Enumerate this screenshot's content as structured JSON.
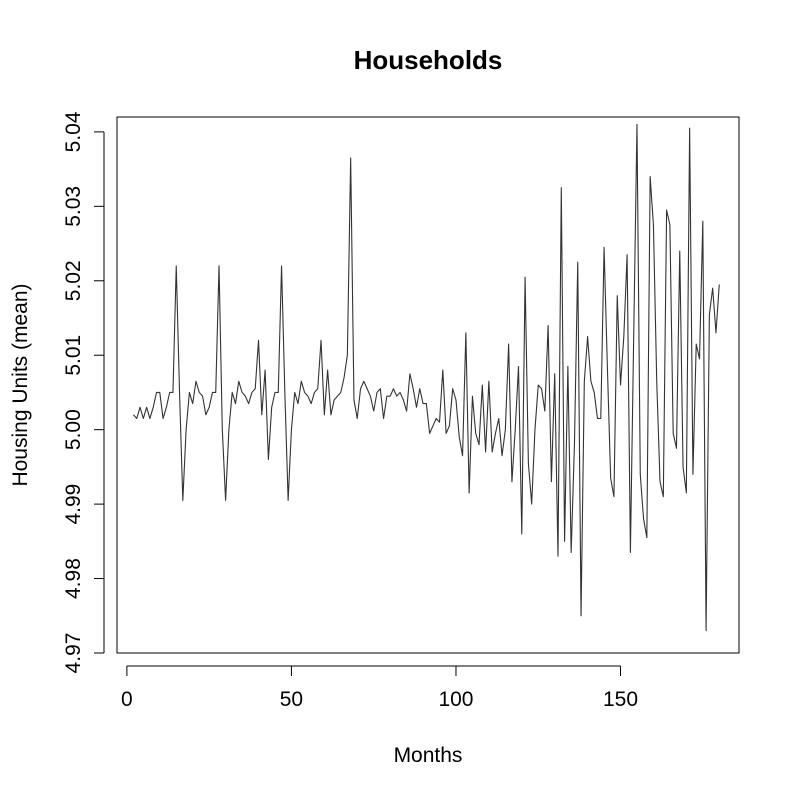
{
  "chart_data": {
    "type": "line",
    "title": "Households",
    "xlabel": "Months",
    "ylabel": "Housing Units (mean)",
    "xlim": [
      -3,
      186
    ],
    "ylim": [
      4.97,
      5.042
    ],
    "x_ticks": [
      0,
      50,
      100,
      150
    ],
    "x_tick_labels": [
      "0",
      "50",
      "100",
      "150"
    ],
    "y_ticks": [
      4.97,
      4.98,
      4.99,
      5.0,
      5.01,
      5.02,
      5.03,
      5.04
    ],
    "y_tick_labels": [
      "4.97",
      "4.98",
      "4.99",
      "5.00",
      "5.01",
      "5.02",
      "5.03",
      "5.04"
    ],
    "grid": false,
    "line_color": "#333333",
    "series": [
      {
        "x": [
          2,
          3,
          4,
          5,
          6,
          7,
          8,
          9,
          10,
          11,
          12,
          13,
          14,
          15,
          16,
          17,
          18,
          19,
          20,
          21,
          22,
          23,
          24,
          25,
          26,
          27,
          28,
          29,
          30,
          31,
          32,
          33,
          34,
          35,
          36,
          37,
          38,
          39,
          40,
          41,
          42,
          43,
          44,
          45,
          46,
          47,
          48,
          49,
          50,
          51,
          52,
          53,
          54,
          55,
          56,
          57,
          58,
          59,
          60,
          61,
          62,
          63,
          64,
          65,
          66,
          67,
          68,
          69,
          70,
          71,
          72,
          73,
          74,
          75,
          76,
          77,
          78,
          79,
          80,
          81,
          82,
          83,
          84,
          85,
          86,
          87,
          88,
          89,
          90,
          91,
          92,
          93,
          94,
          95,
          96,
          97,
          98,
          99,
          100,
          101,
          102,
          103,
          104,
          105,
          106,
          107,
          108,
          109,
          110,
          111,
          112,
          113,
          114,
          115,
          116,
          117,
          118,
          119,
          120,
          121,
          122,
          123,
          124,
          125,
          126,
          127,
          128,
          129,
          130,
          131,
          132,
          133,
          134,
          135,
          136,
          137,
          138,
          139,
          140,
          141,
          142,
          143,
          144,
          145,
          146,
          147,
          148,
          149,
          150,
          151,
          152,
          153,
          154,
          155,
          156,
          157,
          158,
          159,
          160,
          161,
          162,
          163,
          164,
          165,
          166,
          167,
          168,
          169,
          170,
          171,
          172,
          173,
          174,
          175,
          176,
          177,
          178,
          179,
          180
        ],
        "values": [
          5.002,
          5.0015,
          5.003,
          5.0015,
          5.003,
          5.0015,
          5.003,
          5.005,
          5.005,
          5.0015,
          5.003,
          5.005,
          5.005,
          5.022,
          5.005,
          4.9905,
          5.0,
          5.005,
          5.0035,
          5.0065,
          5.005,
          5.0045,
          5.002,
          5.003,
          5.005,
          5.005,
          5.022,
          5.0,
          4.9905,
          5.0,
          5.005,
          5.0035,
          5.0065,
          5.005,
          5.0045,
          5.0035,
          5.005,
          5.0055,
          5.012,
          5.002,
          5.008,
          4.996,
          5.003,
          5.005,
          5.005,
          5.022,
          5.005,
          4.9905,
          5.0,
          5.005,
          5.0035,
          5.0065,
          5.005,
          5.0045,
          5.0035,
          5.005,
          5.0055,
          5.012,
          5.002,
          5.008,
          5.002,
          5.004,
          5.0045,
          5.005,
          5.007,
          5.01,
          5.0365,
          5.004,
          5.0015,
          5.0055,
          5.0065,
          5.0055,
          5.0045,
          5.0025,
          5.005,
          5.0055,
          5.0015,
          5.0045,
          5.0045,
          5.0055,
          5.0045,
          5.005,
          5.004,
          5.0025,
          5.0075,
          5.0055,
          5.003,
          5.0055,
          5.0035,
          5.0035,
          4.9995,
          5.0005,
          5.0015,
          5.001,
          5.008,
          4.9995,
          5.0005,
          5.0055,
          5.004,
          4.999,
          4.9965,
          5.013,
          4.9915,
          5.0045,
          4.9995,
          4.998,
          5.006,
          4.997,
          5.0065,
          4.997,
          4.9995,
          5.0015,
          4.9965,
          5.0,
          5.0115,
          4.993,
          5.0,
          5.0085,
          4.986,
          5.0205,
          4.9955,
          4.99,
          5.0,
          5.006,
          5.0055,
          5.0025,
          5.014,
          4.993,
          5.0075,
          4.983,
          5.0325,
          4.985,
          5.0085,
          4.9835,
          4.998,
          5.0225,
          4.975,
          5.0065,
          5.0125,
          5.0065,
          5.005,
          5.0015,
          5.0015,
          5.0245,
          5.0085,
          4.9935,
          4.991,
          5.018,
          5.006,
          5.0125,
          5.0235,
          4.9835,
          5.0125,
          5.041,
          4.994,
          4.988,
          4.9855,
          5.034,
          5.0275,
          5.0065,
          4.993,
          4.991,
          5.0295,
          5.0275,
          4.9995,
          4.9975,
          5.024,
          4.995,
          4.9915,
          5.0405,
          4.994,
          5.0115,
          5.0095,
          5.028,
          4.973,
          5.0155,
          5.019,
          5.013,
          5.0195
        ]
      }
    ]
  }
}
